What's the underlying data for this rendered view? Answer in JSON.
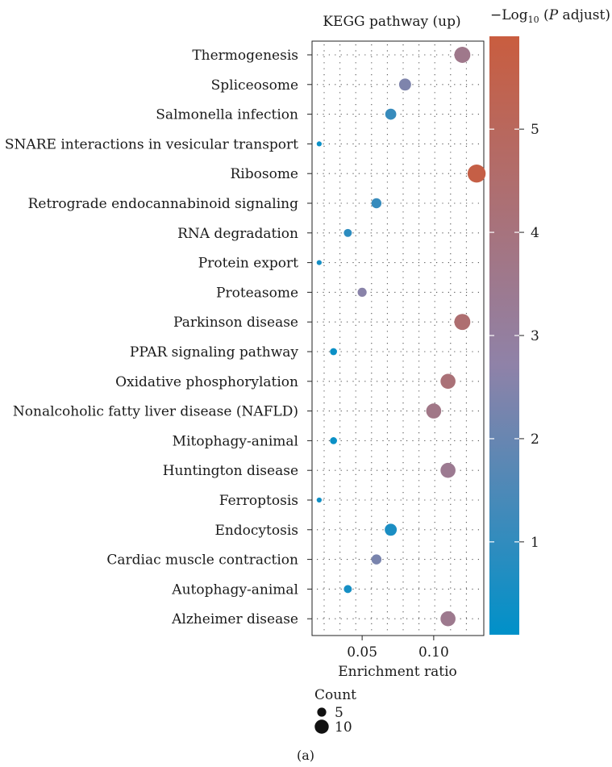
{
  "chart_data": {
    "type": "scatter",
    "title": "KEGG pathway (up)",
    "xlabel": "Enrichment ratio",
    "xticks": [
      0.05,
      0.1
    ],
    "xtick_labels": [
      "0.05",
      "0.10"
    ],
    "xlim": [
      0.015,
      0.135
    ],
    "categories": [
      "Thermogenesis",
      "Spliceosome",
      "Salmonella infection",
      "SNARE interactions in vesicular transport",
      "Ribosome",
      "Retrograde endocannabinoid signaling",
      "RNA degradation",
      "Protein export",
      "Proteasome",
      "Parkinson disease",
      "PPAR signaling pathway",
      "Oxidative phosphorylation",
      "Nonalcoholic fatty liver disease (NAFLD)",
      "Mitophagy-animal",
      "Huntington disease",
      "Ferroptosis",
      "Endocytosis",
      "Cardiac muscle contraction",
      "Autophagy-animal",
      "Alzheimer disease"
    ],
    "points": [
      {
        "pathway": "Thermogenesis",
        "ratio": 0.12,
        "count": 12,
        "neg_log10_padj": 3.6
      },
      {
        "pathway": "Spliceosome",
        "ratio": 0.08,
        "count": 8,
        "neg_log10_padj": 2.4
      },
      {
        "pathway": "Salmonella infection",
        "ratio": 0.07,
        "count": 7,
        "neg_log10_padj": 1.1
      },
      {
        "pathway": "SNARE interactions in vesicular transport",
        "ratio": 0.02,
        "count": 1,
        "neg_log10_padj": 0.3
      },
      {
        "pathway": "Ribosome",
        "ratio": 0.13,
        "count": 14,
        "neg_log10_padj": 5.7
      },
      {
        "pathway": "Retrograde endocannabinoid signaling",
        "ratio": 0.06,
        "count": 6,
        "neg_log10_padj": 1.1
      },
      {
        "pathway": "RNA degradation",
        "ratio": 0.04,
        "count": 4,
        "neg_log10_padj": 0.9
      },
      {
        "pathway": "Protein export",
        "ratio": 0.02,
        "count": 1,
        "neg_log10_padj": 0.5
      },
      {
        "pathway": "Proteasome",
        "ratio": 0.05,
        "count": 5,
        "neg_log10_padj": 2.6
      },
      {
        "pathway": "Parkinson disease",
        "ratio": 0.12,
        "count": 12,
        "neg_log10_padj": 4.4
      },
      {
        "pathway": "PPAR signaling pathway",
        "ratio": 0.03,
        "count": 3,
        "neg_log10_padj": 0.3
      },
      {
        "pathway": "Oxidative phosphorylation",
        "ratio": 0.11,
        "count": 11,
        "neg_log10_padj": 4.2
      },
      {
        "pathway": "Nonalcoholic fatty liver disease (NAFLD)",
        "ratio": 0.1,
        "count": 11,
        "neg_log10_padj": 3.7
      },
      {
        "pathway": "Mitophagy-animal",
        "ratio": 0.03,
        "count": 3,
        "neg_log10_padj": 0.3
      },
      {
        "pathway": "Huntington disease",
        "ratio": 0.11,
        "count": 11,
        "neg_log10_padj": 3.4
      },
      {
        "pathway": "Ferroptosis",
        "ratio": 0.02,
        "count": 1,
        "neg_log10_padj": 0.4
      },
      {
        "pathway": "Endocytosis",
        "ratio": 0.07,
        "count": 8,
        "neg_log10_padj": 0.6
      },
      {
        "pathway": "Cardiac muscle contraction",
        "ratio": 0.06,
        "count": 6,
        "neg_log10_padj": 2.3
      },
      {
        "pathway": "Autophagy-animal",
        "ratio": 0.04,
        "count": 4,
        "neg_log10_padj": 0.5
      },
      {
        "pathway": "Alzheimer disease",
        "ratio": 0.11,
        "count": 11,
        "neg_log10_padj": 3.5
      }
    ],
    "colorbar": {
      "title_prefix": "−Log",
      "title_sub": "10",
      "title_open": " (",
      "title_italic": "P",
      "title_rest": " adjust)",
      "range": [
        0.1,
        5.9
      ],
      "ticks": [
        1,
        2,
        3,
        4,
        5
      ],
      "tick_labels": [
        "1",
        "2",
        "3",
        "4",
        "5"
      ],
      "color_low": "#0091c9",
      "color_mid": "#8f82a8",
      "color_high": "#c95d3f"
    },
    "size_legend": {
      "title": "Count",
      "entries": [
        {
          "label": "5",
          "count": 5
        },
        {
          "label": "10",
          "count": 10
        }
      ]
    },
    "grid": "dotted",
    "legend_placement": "right (color), bottom (size)"
  },
  "panel_label": "(a)"
}
